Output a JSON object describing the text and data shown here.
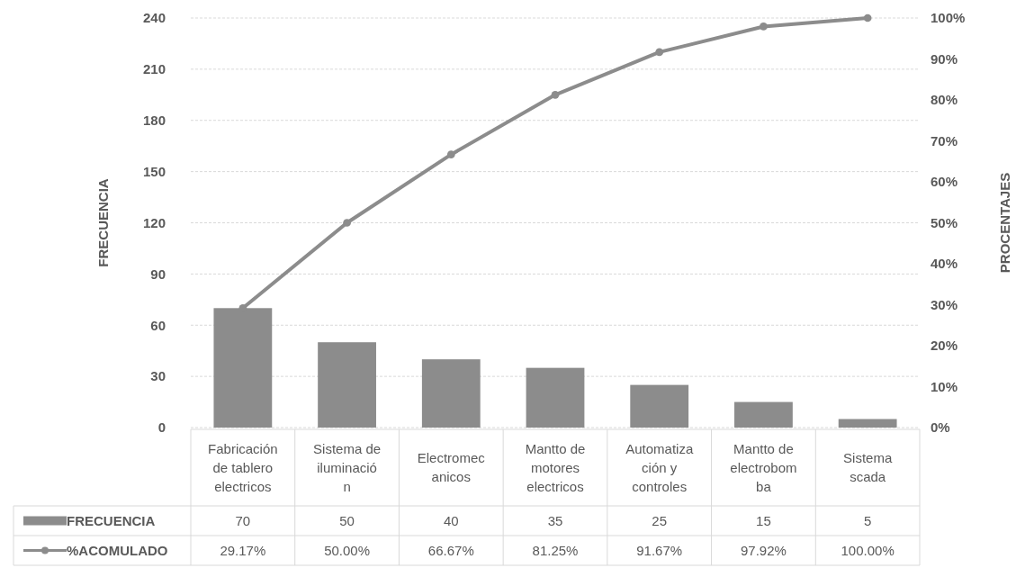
{
  "chart_data": {
    "type": "bar",
    "ylabel": "FRECUENCIA",
    "y2label": "PROCENTAJES",
    "categories": [
      "Fabricación\nde tablero\nelectricos",
      "Sistema de\niluminació\nn",
      "Electromec\nanicos",
      "Mantto de\nmotores\nelectricos",
      "Automatiza\nción y\ncontroles",
      "Mantto de\nelectrobom\nba",
      "Sistema\nscada"
    ],
    "series": [
      {
        "name": "FRECUENCIA",
        "color": "#8c8c8c",
        "values": [
          70,
          50,
          40,
          35,
          25,
          15,
          5
        ],
        "value_labels": [
          "70",
          "50",
          "40",
          "35",
          "25",
          "15",
          "5"
        ]
      },
      {
        "name": "%ACOMULADO",
        "type": "line",
        "axis": "y2",
        "color": "#8c8c8c",
        "marker": "circle",
        "values": [
          29.17,
          50,
          66.67,
          81.25,
          91.67,
          97.92,
          100
        ],
        "value_labels": [
          "29.17%",
          "50.00%",
          "66.67%",
          "81.25%",
          "91.67%",
          "97.92%",
          "100.00%"
        ]
      }
    ],
    "ylim": [
      0,
      240
    ],
    "yticks": [
      0,
      30,
      60,
      90,
      120,
      150,
      180,
      210,
      240
    ],
    "y2lim": [
      0,
      100
    ],
    "y2ticks": [
      {
        "value": 0,
        "label": "0%"
      },
      {
        "value": 10,
        "label": "10%"
      },
      {
        "value": 20,
        "label": "20%"
      },
      {
        "value": 30,
        "label": "30%"
      },
      {
        "value": 40,
        "label": "40%"
      },
      {
        "value": 50,
        "label": "50%"
      },
      {
        "value": 60,
        "label": "60%"
      },
      {
        "value": 70,
        "label": "70%"
      },
      {
        "value": 80,
        "label": "80%"
      },
      {
        "value": 90,
        "label": "90%"
      },
      {
        "value": 100,
        "label": "100%"
      }
    ],
    "grid": "y",
    "legend": "bottom"
  }
}
